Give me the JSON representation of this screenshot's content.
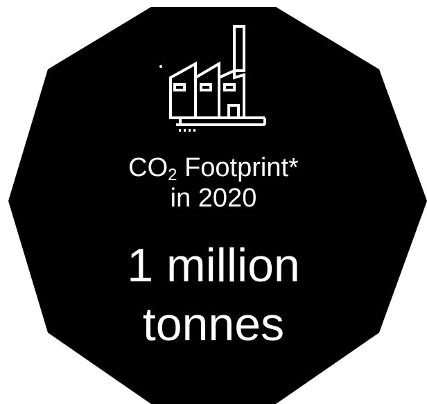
{
  "badge": {
    "shape": "dodecagon",
    "fill_color": "#000000",
    "text_color": "#ffffff"
  },
  "icon": "factory-icon",
  "label": {
    "prefix": "CO",
    "subscript": "2",
    "suffix": " Footprint*",
    "line2": "in 2020"
  },
  "value": {
    "line1": "1 million",
    "line2": "tonnes"
  }
}
